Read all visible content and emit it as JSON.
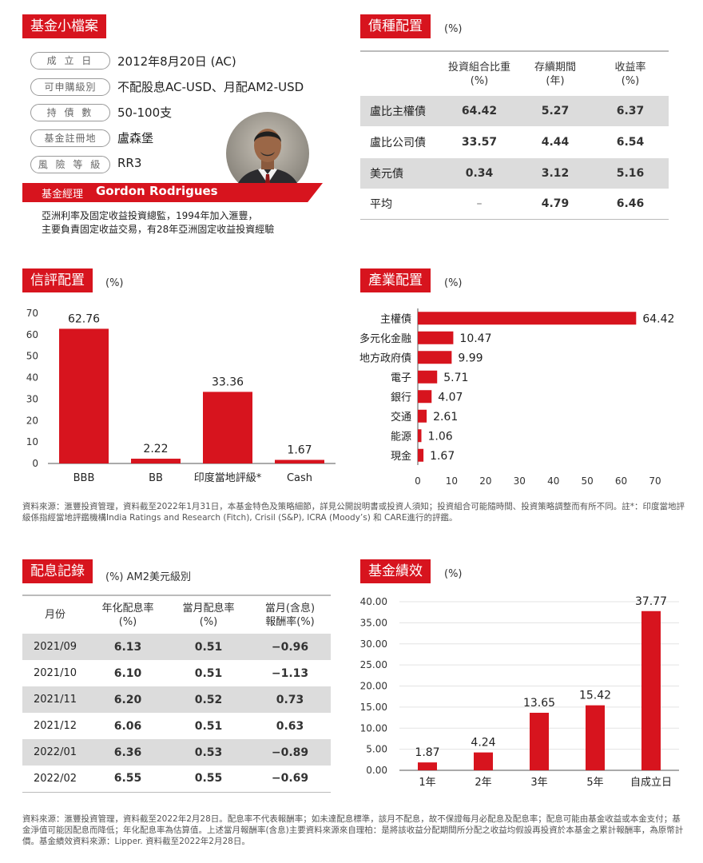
{
  "profile": {
    "title": "基金小檔案",
    "items": [
      {
        "label": "成 立 日",
        "value": "2012年8月20日 (AC)"
      },
      {
        "label": "可申購級別",
        "value": "不配股息AC-USD、月配AM2-USD"
      },
      {
        "label": "持 債 數",
        "value": "50-100支"
      },
      {
        "label": "基金註冊地",
        "value": "盧森堡"
      },
      {
        "label": "風 險 等 級",
        "value": "RR3"
      }
    ],
    "manager_label": "基金經理",
    "manager_name": "Gordon Rodrigues",
    "manager_bio_1": "亞洲利率及固定收益投資總監，1994年加入滙豐，",
    "manager_bio_2": "主要負責固定收益交易，有28年亞洲固定收益投資經驗"
  },
  "bond_allocation": {
    "title": "債種配置",
    "unit": "(%)",
    "headers": [
      "投資組合比重\n(%)",
      "存續期間\n(年)",
      "收益率\n(%)"
    ],
    "rows": [
      {
        "name": "盧比主權債",
        "weight": "64.42",
        "duration": "5.27",
        "yield": "6.37"
      },
      {
        "name": "盧比公司債",
        "weight": "33.57",
        "duration": "4.44",
        "yield": "6.54"
      },
      {
        "name": "美元債",
        "weight": "0.34",
        "duration": "3.12",
        "yield": "5.16"
      },
      {
        "name": "平均",
        "weight": "–",
        "duration": "4.79",
        "yield": "6.46"
      }
    ]
  },
  "credit_rating": {
    "title": "信評配置",
    "unit": "(%)"
  },
  "industry": {
    "title": "產業配置",
    "unit": "(%)"
  },
  "note_1": "資料來源：滙豐投資管理，資料截至2022年1月31日，本基金特色及策略細節，詳見公開說明書或投資人須知；投資組合可能隨時間、投資策略調整而有所不同。註*：印度當地評級係指經當地評鑑機構India Ratings and Research (Fitch), Crisil (S&P), ICRA (Moody’s) 和 CARE進行的評鑑。",
  "dividend": {
    "title": "配息記錄",
    "unit": "(%) AM2美元級別",
    "headers": [
      "月份",
      "年化配息率\n(%)",
      "當月配息率\n(%)",
      "當月(含息)\n報酬率(%)"
    ],
    "rows": [
      {
        "month": "2021/09",
        "annual": "6.13",
        "monthly": "0.51",
        "ret": "−0.96"
      },
      {
        "month": "2021/10",
        "annual": "6.10",
        "monthly": "0.51",
        "ret": "−1.13"
      },
      {
        "month": "2021/11",
        "annual": "6.20",
        "monthly": "0.52",
        "ret": "0.73"
      },
      {
        "month": "2021/12",
        "annual": "6.06",
        "monthly": "0.51",
        "ret": "0.63"
      },
      {
        "month": "2022/01",
        "annual": "6.36",
        "monthly": "0.53",
        "ret": "−0.89"
      },
      {
        "month": "2022/02",
        "annual": "6.55",
        "monthly": "0.55",
        "ret": "−0.69"
      }
    ]
  },
  "performance": {
    "title": "基金績效",
    "unit": "(%)"
  },
  "note_2": "資料來源：滙豐投資管理，資料截至2022年2月28日。配息率不代表報酬率；如未達配息標準，該月不配息，故不保證每月必配息及配息率；配息可能由基金收益或本金支付；基金淨值可能因配息而降低；年化配息率為估算值。上述當月報酬率(含息)主要資料來源來自理柏：是將該收益分配期間所分配之收益均假設再投資於本基金之累計報酬率，為原幣計價。基金績效資料來源：Lipper. 資料截至2022年2月28日。",
  "colors": {
    "accent": "#d7141e",
    "gray_row": "#dcdcdc"
  },
  "chart_data": [
    {
      "type": "bar",
      "name": "credit-rating",
      "categories": [
        "BBB",
        "BB",
        "印度當地評級*",
        "Cash"
      ],
      "values": [
        62.76,
        2.22,
        33.36,
        1.67
      ],
      "labels": [
        "62.76",
        "2.22",
        "33.36",
        "1.67"
      ],
      "yticks": [
        "0",
        "10",
        "20",
        "30",
        "40",
        "50",
        "60",
        "70"
      ],
      "ylim": [
        0,
        70
      ]
    },
    {
      "type": "bar",
      "orientation": "horizontal",
      "name": "industry",
      "categories": [
        "主權債",
        "多元化金融",
        "地方政府債",
        "電子",
        "銀行",
        "交通",
        "能源",
        "現金"
      ],
      "values": [
        64.42,
        10.47,
        9.99,
        5.71,
        4.07,
        2.61,
        1.06,
        1.67
      ],
      "labels": [
        "64.42",
        "10.47",
        "9.99",
        "5.71",
        "4.07",
        "2.61",
        "1.06",
        "1.67"
      ],
      "xticks": [
        "0",
        "10",
        "20",
        "30",
        "40",
        "50",
        "60",
        "70"
      ],
      "xlim": [
        0,
        70
      ]
    },
    {
      "type": "bar",
      "name": "performance",
      "categories": [
        "1年",
        "2年",
        "3年",
        "5年",
        "自成立日"
      ],
      "values": [
        1.87,
        4.24,
        13.65,
        15.42,
        37.77
      ],
      "labels": [
        "1.87",
        "4.24",
        "13.65",
        "15.42",
        "37.77"
      ],
      "yticks": [
        "0.00",
        "5.00",
        "10.00",
        "15.00",
        "20.00",
        "25.00",
        "30.00",
        "35.00",
        "40.00"
      ],
      "ylim": [
        0,
        40
      ]
    }
  ]
}
